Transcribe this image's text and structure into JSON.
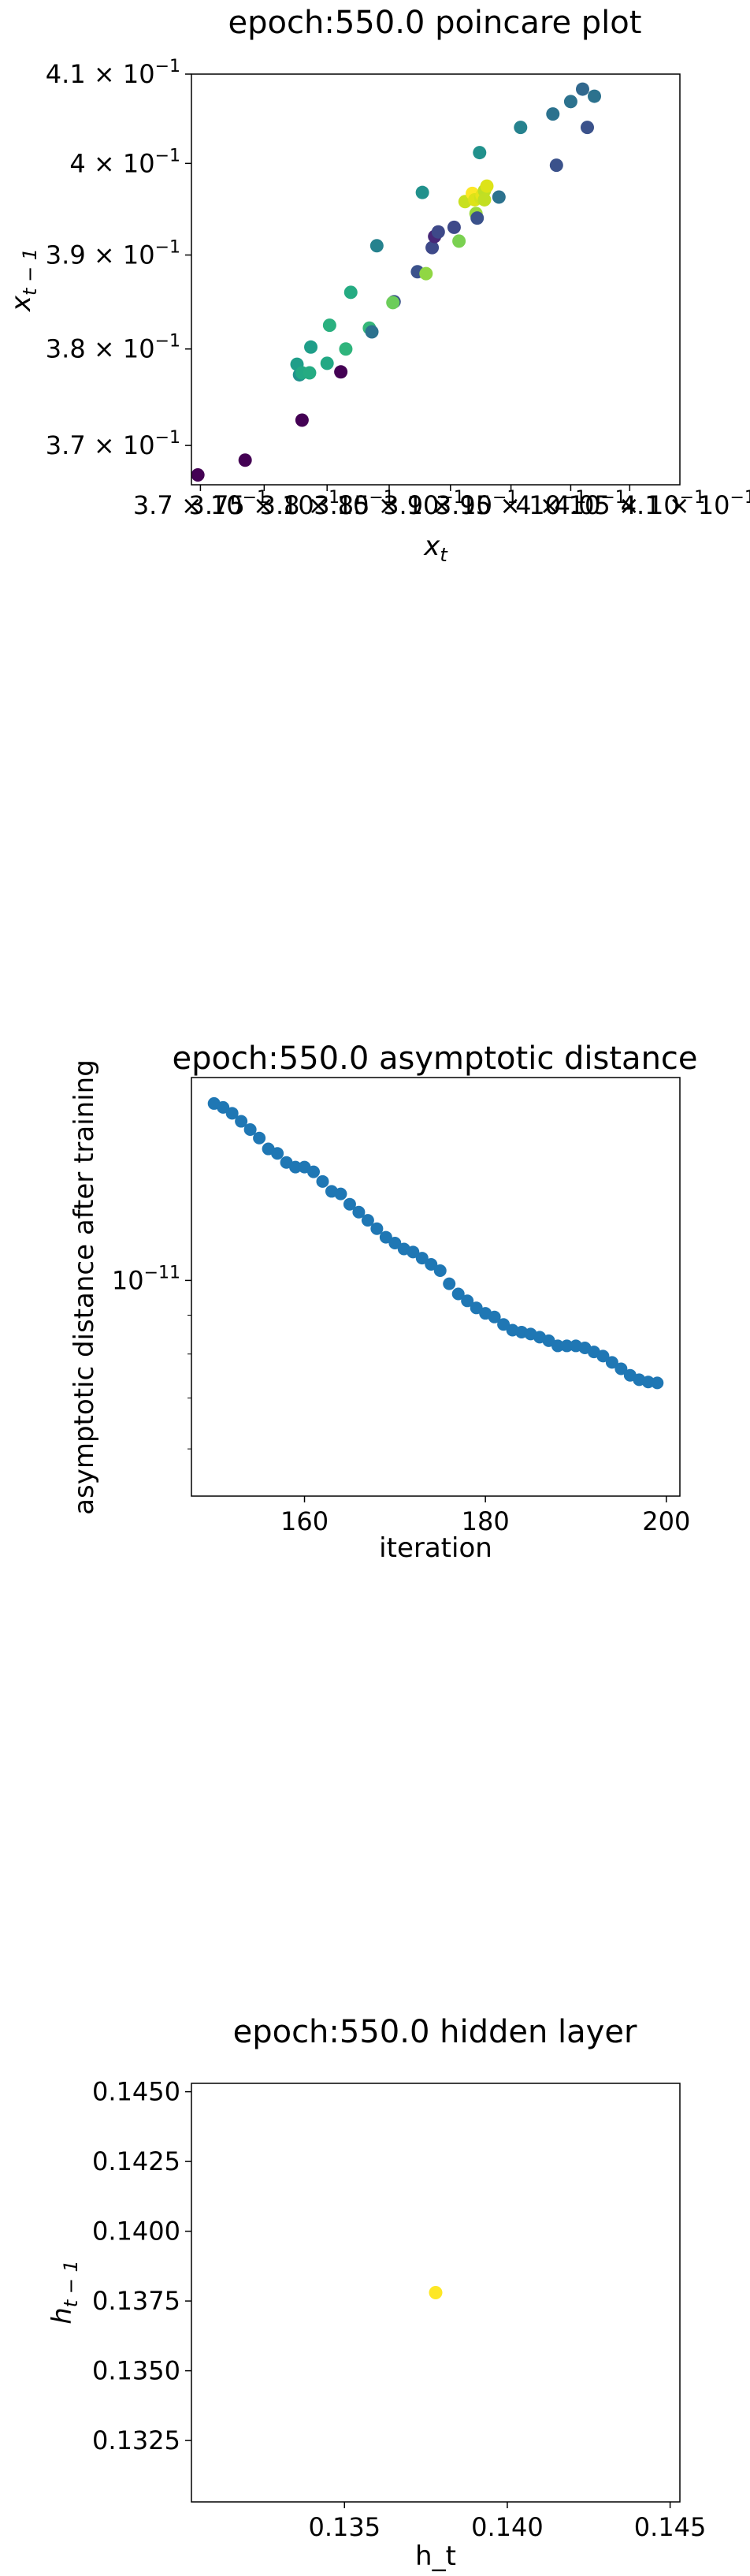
{
  "chart_data": [
    {
      "type": "scatter",
      "title": "epoch:550.0 poincare plot",
      "xlabel": "x_t",
      "ylabel": "x_{t-1}",
      "xscale": "log",
      "yscale": "log",
      "xlim": [
        0.3693,
        0.4093
      ],
      "ylim": [
        0.366,
        0.41
      ],
      "xticks": [
        {
          "v": 0.37,
          "base": "3.7 × 10",
          "exp": "−1"
        },
        {
          "v": 0.375,
          "base": "3.75 × 10",
          "exp": "−1"
        },
        {
          "v": 0.38,
          "base": "3.8 × 10",
          "exp": "−1"
        },
        {
          "v": 0.385,
          "base": "3.85 × 10",
          "exp": "−1"
        },
        {
          "v": 0.39,
          "base": "3.9 × 10",
          "exp": "−1"
        },
        {
          "v": 0.395,
          "base": "3.95 × 10",
          "exp": "−1"
        },
        {
          "v": 0.4,
          "base": "4 × 10",
          "exp": "−1"
        },
        {
          "v": 0.405,
          "base": "4.05 × 10",
          "exp": "−1"
        },
        {
          "v": 0.41,
          "base": "4.1 × 10",
          "exp": "−1"
        }
      ],
      "yticks": [
        {
          "v": 0.37,
          "base": "3.7 × 10",
          "exp": "−1"
        },
        {
          "v": 0.38,
          "base": "3.8 × 10",
          "exp": "−1"
        },
        {
          "v": 0.39,
          "base": "3.9 × 10",
          "exp": "−1"
        },
        {
          "v": 0.4,
          "base": "4 × 10",
          "exp": "−1"
        },
        {
          "v": 0.41,
          "base": "4.1 × 10",
          "exp": "−1"
        }
      ],
      "points": [
        {
          "x": 0.3698,
          "y": 0.367,
          "c": "#440154"
        },
        {
          "x": 0.3735,
          "y": 0.3685,
          "c": "#440154"
        },
        {
          "x": 0.378,
          "y": 0.3726,
          "c": "#440154"
        },
        {
          "x": 0.3778,
          "y": 0.3773,
          "c": "#21918c"
        },
        {
          "x": 0.3776,
          "y": 0.3784,
          "c": "#1f9e89"
        },
        {
          "x": 0.378,
          "y": 0.3775,
          "c": "#22a884"
        },
        {
          "x": 0.3786,
          "y": 0.3775,
          "c": "#25ab82"
        },
        {
          "x": 0.3787,
          "y": 0.3802,
          "c": "#1f9e89"
        },
        {
          "x": 0.38,
          "y": 0.3785,
          "c": "#22a884"
        },
        {
          "x": 0.3802,
          "y": 0.3825,
          "c": "#2ab07f"
        },
        {
          "x": 0.3811,
          "y": 0.3776,
          "c": "#440154"
        },
        {
          "x": 0.3815,
          "y": 0.38,
          "c": "#2fb47c"
        },
        {
          "x": 0.3819,
          "y": 0.386,
          "c": "#25ab82"
        },
        {
          "x": 0.3834,
          "y": 0.3822,
          "c": "#35b779"
        },
        {
          "x": 0.3836,
          "y": 0.3818,
          "c": "#2c728e"
        },
        {
          "x": 0.384,
          "y": 0.391,
          "c": "#26828e"
        },
        {
          "x": 0.3854,
          "y": 0.385,
          "c": "#3b528b"
        },
        {
          "x": 0.3853,
          "y": 0.3849,
          "c": "#6ccd5a"
        },
        {
          "x": 0.3873,
          "y": 0.3882,
          "c": "#3b528b"
        },
        {
          "x": 0.3877,
          "y": 0.3968,
          "c": "#21918c"
        },
        {
          "x": 0.388,
          "y": 0.388,
          "c": "#90d743"
        },
        {
          "x": 0.3885,
          "y": 0.3908,
          "c": "#3e4989"
        },
        {
          "x": 0.3887,
          "y": 0.392,
          "c": "#482878"
        },
        {
          "x": 0.389,
          "y": 0.3925,
          "c": "#3e4989"
        },
        {
          "x": 0.3903,
          "y": 0.393,
          "c": "#3e4989"
        },
        {
          "x": 0.3907,
          "y": 0.3915,
          "c": "#7ad151"
        },
        {
          "x": 0.3912,
          "y": 0.3958,
          "c": "#c8e020"
        },
        {
          "x": 0.3918,
          "y": 0.3967,
          "c": "#fde725"
        },
        {
          "x": 0.392,
          "y": 0.396,
          "c": "#dde318"
        },
        {
          "x": 0.3921,
          "y": 0.3945,
          "c": "#9bd93c"
        },
        {
          "x": 0.3922,
          "y": 0.394,
          "c": "#3b528b"
        },
        {
          "x": 0.3925,
          "y": 0.3962,
          "c": "#d2e21b"
        },
        {
          "x": 0.3926,
          "y": 0.3965,
          "c": "#e7e419"
        },
        {
          "x": 0.3924,
          "y": 0.4012,
          "c": "#21918c"
        },
        {
          "x": 0.3928,
          "y": 0.397,
          "c": "#bddf26"
        },
        {
          "x": 0.393,
          "y": 0.3975,
          "c": "#dde318"
        },
        {
          "x": 0.3928,
          "y": 0.396,
          "c": "#c2df23"
        },
        {
          "x": 0.394,
          "y": 0.3963,
          "c": "#2c728e"
        },
        {
          "x": 0.3958,
          "y": 0.404,
          "c": "#26828e"
        },
        {
          "x": 0.3985,
          "y": 0.4055,
          "c": "#2c728e"
        },
        {
          "x": 0.3988,
          "y": 0.3998,
          "c": "#3b528b"
        },
        {
          "x": 0.4,
          "y": 0.4069,
          "c": "#2c728e"
        },
        {
          "x": 0.401,
          "y": 0.4083,
          "c": "#31688e"
        },
        {
          "x": 0.4014,
          "y": 0.404,
          "c": "#3b528b"
        },
        {
          "x": 0.402,
          "y": 0.4075,
          "c": "#2c728e"
        }
      ]
    },
    {
      "type": "scatter",
      "title": "epoch:550.0 asymptotic distance",
      "xlabel": "iteration",
      "ylabel": "asymptotic distance after training",
      "yscale": "log",
      "color": "#1f77b4",
      "xlim": [
        147.5,
        201.5
      ],
      "ylim": [
        5.2e-12,
        1.85e-11
      ],
      "xticks": [
        160,
        180,
        200
      ],
      "yticks_major": [
        {
          "v": 1e-11,
          "base": "10",
          "exp": "−11"
        }
      ],
      "yticks_minor": [
        6e-12,
        7e-12,
        8e-12,
        9e-12
      ],
      "x": [
        150,
        151,
        152,
        153,
        154,
        155,
        156,
        157,
        158,
        159,
        160,
        161,
        162,
        163,
        164,
        165,
        166,
        167,
        168,
        169,
        170,
        171,
        172,
        173,
        174,
        175,
        176,
        177,
        178,
        179,
        180,
        181,
        182,
        183,
        184,
        185,
        186,
        187,
        188,
        189,
        190,
        191,
        192,
        193,
        194,
        195,
        196,
        197,
        198,
        199
      ],
      "y": [
        1.71e-11,
        1.69e-11,
        1.66e-11,
        1.62e-11,
        1.58e-11,
        1.54e-11,
        1.49e-11,
        1.47e-11,
        1.43e-11,
        1.41e-11,
        1.41e-11,
        1.39e-11,
        1.35e-11,
        1.31e-11,
        1.3e-11,
        1.26e-11,
        1.23e-11,
        1.2e-11,
        1.17e-11,
        1.14e-11,
        1.12e-11,
        1.1e-11,
        1.09e-11,
        1.07e-11,
        1.05e-11,
        1.03e-11,
        9.9e-12,
        9.6e-12,
        9.4e-12,
        9.2e-12,
        9.05e-12,
        8.95e-12,
        8.75e-12,
        8.6e-12,
        8.55e-12,
        8.5e-12,
        8.42e-12,
        8.33e-12,
        8.2e-12,
        8.2e-12,
        8.2e-12,
        8.15e-12,
        8.05e-12,
        7.95e-12,
        7.8e-12,
        7.65e-12,
        7.5e-12,
        7.4e-12,
        7.35e-12,
        7.33e-12
      ]
    },
    {
      "type": "scatter",
      "title": "epoch:550.0 hidden layer",
      "xlabel": "h_t",
      "ylabel": "h_{t-1}",
      "xlim": [
        0.1303,
        0.1453
      ],
      "ylim": [
        0.1303,
        0.1453
      ],
      "xticks": [
        "0.135",
        "0.140",
        "0.145"
      ],
      "yticks": [
        "0.1325",
        "0.1350",
        "0.1375",
        "0.1400",
        "0.1425",
        "0.1450"
      ],
      "points": [
        {
          "x": 0.1378,
          "y": 0.1378,
          "c": "#fde725"
        }
      ]
    }
  ]
}
